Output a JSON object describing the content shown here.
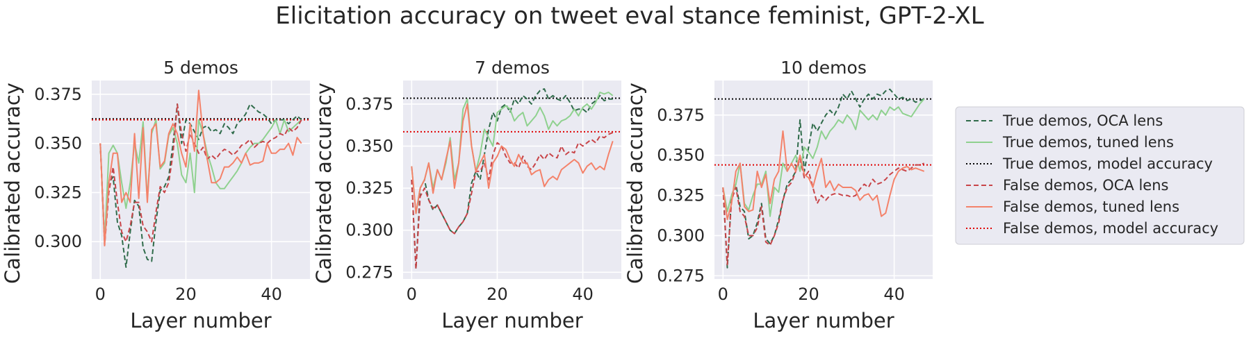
{
  "figure_title": "Elicitation accuracy on tweet eval stance feminist, GPT-2-XL",
  "legend": {
    "placement": "right",
    "entries": [
      {
        "label": "True demos, OCA lens",
        "color": "#2f6b4a",
        "dash": "dashed"
      },
      {
        "label": "True demos, tuned lens",
        "color": "#8fd18f",
        "dash": "solid"
      },
      {
        "label": "True demos, model accuracy",
        "color": "#000000",
        "dash": "dotted"
      },
      {
        "label": "False demos, OCA lens",
        "color": "#c84448",
        "dash": "dashed"
      },
      {
        "label": "False demos, tuned lens",
        "color": "#f4826a",
        "dash": "solid"
      },
      {
        "label": "False demos, model accuracy",
        "color": "#e00000",
        "dash": "dotted"
      }
    ]
  },
  "chart_data": [
    {
      "type": "line",
      "title": "5 demos",
      "xlabel": "Layer number",
      "ylabel": "Calibrated accuracy",
      "xlim": [
        -2,
        49
      ],
      "ylim": [
        0.281,
        0.382
      ],
      "xticks": [
        "0",
        "20",
        "40"
      ],
      "yticks": [
        "0.300",
        "0.325",
        "0.350",
        "0.375"
      ],
      "grid": true,
      "baselines": {
        "true_model_accuracy": 0.3625,
        "false_model_accuracy": 0.362
      },
      "series": [
        {
          "name": "True demos, OCA lens",
          "x_start": 0,
          "values": [
            0.35,
            0.3,
            0.33,
            0.333,
            0.31,
            0.303,
            0.287,
            0.305,
            0.321,
            0.318,
            0.297,
            0.291,
            0.29,
            0.31,
            0.326,
            0.328,
            0.333,
            0.35,
            0.37,
            0.35,
            0.362,
            0.36,
            0.356,
            0.352,
            0.358,
            0.359,
            0.356,
            0.357,
            0.355,
            0.36,
            0.358,
            0.355,
            0.36,
            0.362,
            0.365,
            0.37,
            0.368,
            0.366,
            0.365,
            0.363,
            0.36,
            0.362,
            0.362,
            0.362,
            0.36,
            0.362,
            0.364,
            0.362
          ]
        },
        {
          "name": "True demos, tuned lens",
          "x_start": 0,
          "values": [
            0.35,
            0.3,
            0.345,
            0.349,
            0.345,
            0.33,
            0.317,
            0.33,
            0.35,
            0.34,
            0.361,
            0.322,
            0.355,
            0.362,
            0.337,
            0.34,
            0.354,
            0.358,
            0.35,
            0.334,
            0.33,
            0.345,
            0.325,
            0.362,
            0.355,
            0.345,
            0.338,
            0.33,
            0.327,
            0.327,
            0.33,
            0.333,
            0.336,
            0.34,
            0.345,
            0.348,
            0.35,
            0.35,
            0.352,
            0.355,
            0.358,
            0.362,
            0.355,
            0.362,
            0.356,
            0.358,
            0.36,
            0.362
          ]
        },
        {
          "name": "False demos, OCA lens",
          "x_start": 0,
          "values": [
            0.35,
            0.298,
            0.325,
            0.338,
            0.32,
            0.305,
            0.3,
            0.308,
            0.32,
            0.32,
            0.308,
            0.305,
            0.3,
            0.315,
            0.328,
            0.325,
            0.33,
            0.345,
            0.37,
            0.355,
            0.346,
            0.355,
            0.35,
            0.345,
            0.348,
            0.342,
            0.344,
            0.342,
            0.345,
            0.347,
            0.346,
            0.344,
            0.346,
            0.349,
            0.35,
            0.352,
            0.348,
            0.35,
            0.351,
            0.35,
            0.352,
            0.353,
            0.355,
            0.354,
            0.358,
            0.356,
            0.358,
            0.362
          ]
        },
        {
          "name": "False demos, tuned lens",
          "x_start": 0,
          "values": [
            0.35,
            0.298,
            0.33,
            0.345,
            0.345,
            0.32,
            0.325,
            0.32,
            0.355,
            0.322,
            0.358,
            0.32,
            0.357,
            0.36,
            0.338,
            0.341,
            0.355,
            0.36,
            0.355,
            0.345,
            0.338,
            0.36,
            0.346,
            0.377,
            0.355,
            0.342,
            0.33,
            0.33,
            0.332,
            0.338,
            0.338,
            0.34,
            0.343,
            0.34,
            0.345,
            0.339,
            0.34,
            0.34,
            0.341,
            0.35,
            0.345,
            0.345,
            0.347,
            0.347,
            0.35,
            0.344,
            0.353,
            0.35
          ]
        }
      ]
    },
    {
      "type": "line",
      "title": "7 demos",
      "xlabel": "Layer number",
      "ylabel": "Calibrated accuracy",
      "xlim": [
        -2,
        49
      ],
      "ylim": [
        0.271,
        0.389
      ],
      "xticks": [
        "0",
        "20",
        "40"
      ],
      "yticks": [
        "0.275",
        "0.300",
        "0.325",
        "0.350",
        "0.375"
      ],
      "grid": true,
      "baselines": {
        "true_model_accuracy": 0.3785,
        "false_model_accuracy": 0.3585
      },
      "series": [
        {
          "name": "True demos, OCA lens",
          "x_start": 0,
          "values": [
            0.33,
            0.277,
            0.325,
            0.33,
            0.318,
            0.312,
            0.315,
            0.31,
            0.305,
            0.3,
            0.298,
            0.302,
            0.305,
            0.31,
            0.328,
            0.335,
            0.33,
            0.345,
            0.36,
            0.37,
            0.365,
            0.373,
            0.375,
            0.37,
            0.378,
            0.375,
            0.38,
            0.378,
            0.375,
            0.38,
            0.383,
            0.384,
            0.378,
            0.38,
            0.378,
            0.377,
            0.38,
            0.376,
            0.371,
            0.372,
            0.372,
            0.37,
            0.375,
            0.377,
            0.38,
            0.377,
            0.378,
            0.378
          ]
        },
        {
          "name": "True demos, tuned lens",
          "x_start": 0,
          "values": [
            0.338,
            0.31,
            0.325,
            0.33,
            0.34,
            0.325,
            0.336,
            0.33,
            0.34,
            0.355,
            0.33,
            0.34,
            0.372,
            0.378,
            0.35,
            0.335,
            0.345,
            0.36,
            0.355,
            0.35,
            0.37,
            0.372,
            0.374,
            0.372,
            0.365,
            0.368,
            0.37,
            0.362,
            0.365,
            0.368,
            0.373,
            0.368,
            0.36,
            0.365,
            0.362,
            0.365,
            0.366,
            0.368,
            0.372,
            0.368,
            0.373,
            0.375,
            0.372,
            0.376,
            0.382,
            0.381,
            0.382,
            0.38
          ]
        },
        {
          "name": "False demos, OCA lens",
          "x_start": 0,
          "values": [
            0.33,
            0.277,
            0.32,
            0.325,
            0.318,
            0.313,
            0.315,
            0.31,
            0.305,
            0.3,
            0.298,
            0.302,
            0.305,
            0.31,
            0.322,
            0.335,
            0.335,
            0.34,
            0.33,
            0.345,
            0.352,
            0.35,
            0.344,
            0.34,
            0.34,
            0.337,
            0.344,
            0.338,
            0.336,
            0.34,
            0.345,
            0.342,
            0.346,
            0.344,
            0.343,
            0.35,
            0.345,
            0.347,
            0.346,
            0.352,
            0.35,
            0.352,
            0.354,
            0.352,
            0.356,
            0.355,
            0.357,
            0.358
          ]
        },
        {
          "name": "False demos, tuned lens",
          "x_start": 0,
          "values": [
            0.338,
            0.31,
            0.325,
            0.33,
            0.34,
            0.322,
            0.336,
            0.33,
            0.342,
            0.353,
            0.325,
            0.34,
            0.365,
            0.375,
            0.35,
            0.335,
            0.34,
            0.345,
            0.325,
            0.34,
            0.344,
            0.35,
            0.348,
            0.342,
            0.338,
            0.345,
            0.34,
            0.34,
            0.333,
            0.335,
            0.336,
            0.326,
            0.33,
            0.332,
            0.33,
            0.336,
            0.338,
            0.34,
            0.342,
            0.34,
            0.334,
            0.338,
            0.34,
            0.336,
            0.338,
            0.336,
            0.345,
            0.353
          ]
        }
      ]
    },
    {
      "type": "line",
      "title": "10 demos",
      "xlabel": "Layer number",
      "ylabel": "Calibrated accuracy",
      "xlim": [
        -2,
        49
      ],
      "ylim": [
        0.273,
        0.3965
      ],
      "xticks": [
        "0",
        "20",
        "40"
      ],
      "yticks": [
        "0.275",
        "0.300",
        "0.325",
        "0.350",
        "0.375"
      ],
      "grid": true,
      "baselines": {
        "true_model_accuracy": 0.385,
        "false_model_accuracy": 0.344
      },
      "series": [
        {
          "name": "True demos, OCA lens",
          "x_start": 0,
          "values": [
            0.33,
            0.28,
            0.325,
            0.332,
            0.318,
            0.315,
            0.298,
            0.3,
            0.308,
            0.32,
            0.298,
            0.295,
            0.3,
            0.31,
            0.322,
            0.332,
            0.335,
            0.34,
            0.372,
            0.34,
            0.355,
            0.37,
            0.365,
            0.37,
            0.375,
            0.378,
            0.375,
            0.38,
            0.388,
            0.385,
            0.39,
            0.385,
            0.38,
            0.385,
            0.388,
            0.385,
            0.388,
            0.387,
            0.39,
            0.391,
            0.388,
            0.385,
            0.386,
            0.384,
            0.385,
            0.383,
            0.384,
            0.385
          ]
        },
        {
          "name": "True demos, tuned lens",
          "x_start": 0,
          "values": [
            0.33,
            0.315,
            0.325,
            0.332,
            0.345,
            0.32,
            0.316,
            0.325,
            0.332,
            0.332,
            0.34,
            0.312,
            0.33,
            0.327,
            0.345,
            0.34,
            0.345,
            0.35,
            0.34,
            0.355,
            0.352,
            0.348,
            0.355,
            0.365,
            0.36,
            0.365,
            0.368,
            0.372,
            0.37,
            0.375,
            0.372,
            0.366,
            0.378,
            0.375,
            0.372,
            0.375,
            0.372,
            0.378,
            0.375,
            0.38,
            0.378,
            0.38,
            0.376,
            0.375,
            0.374,
            0.378,
            0.382,
            0.385
          ]
        },
        {
          "name": "False demos, OCA lens",
          "x_start": 0,
          "values": [
            0.33,
            0.282,
            0.322,
            0.33,
            0.315,
            0.312,
            0.3,
            0.3,
            0.305,
            0.318,
            0.296,
            0.294,
            0.3,
            0.308,
            0.322,
            0.33,
            0.333,
            0.34,
            0.348,
            0.336,
            0.34,
            0.33,
            0.32,
            0.325,
            0.322,
            0.325,
            0.326,
            0.326,
            0.325,
            0.325,
            0.324,
            0.325,
            0.329,
            0.332,
            0.33,
            0.335,
            0.332,
            0.333,
            0.335,
            0.338,
            0.34,
            0.342,
            0.341,
            0.34,
            0.342,
            0.344,
            0.344,
            0.345
          ]
        },
        {
          "name": "False demos, tuned lens",
          "x_start": 0,
          "values": [
            0.33,
            0.31,
            0.32,
            0.34,
            0.345,
            0.318,
            0.315,
            0.316,
            0.34,
            0.33,
            0.338,
            0.32,
            0.335,
            0.34,
            0.365,
            0.34,
            0.345,
            0.34,
            0.35,
            0.338,
            0.336,
            0.33,
            0.34,
            0.348,
            0.33,
            0.334,
            0.328,
            0.332,
            0.33,
            0.33,
            0.33,
            0.328,
            0.322,
            0.325,
            0.326,
            0.322,
            0.325,
            0.312,
            0.314,
            0.325,
            0.335,
            0.34,
            0.342,
            0.343,
            0.341,
            0.342,
            0.341,
            0.34
          ]
        }
      ]
    }
  ]
}
